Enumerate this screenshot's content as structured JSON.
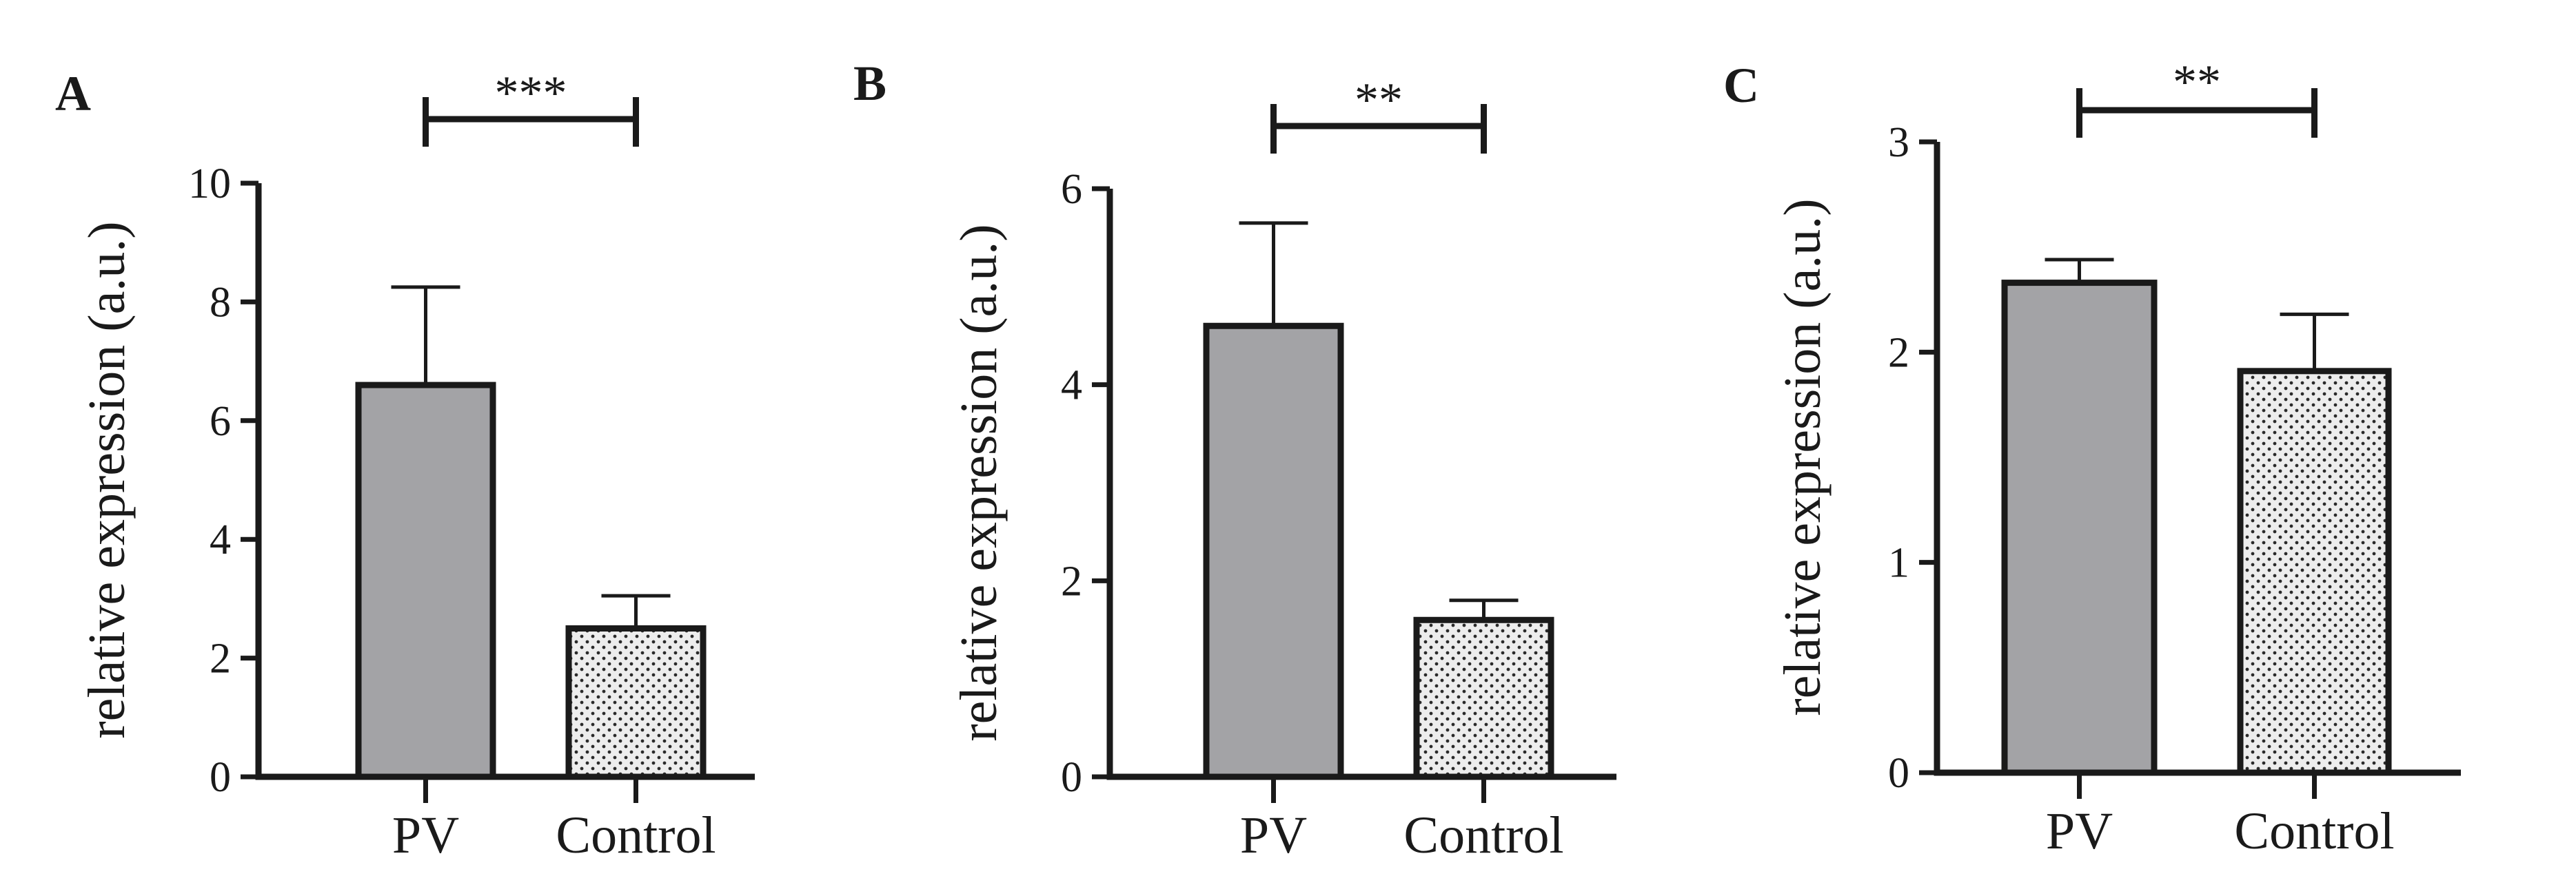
{
  "figure": {
    "panel_labels": [
      "A",
      "B",
      "C"
    ]
  },
  "colors": {
    "axis": "#1a1a1a",
    "pv_fill": "#a3a3a6",
    "control_fill": "#ededed",
    "control_dots": "#2a2a2a"
  },
  "chart_data": [
    {
      "type": "bar",
      "panel": "A",
      "categories": [
        "PV",
        "Control"
      ],
      "values": [
        6.6,
        2.5
      ],
      "errors": [
        1.65,
        0.55
      ],
      "ylabel": "relative expression (a.u.)",
      "ylim": [
        0,
        10
      ],
      "yticks": [
        0,
        2,
        4,
        6,
        8,
        10
      ],
      "significance": "***",
      "grid": false
    },
    {
      "type": "bar",
      "panel": "B",
      "categories": [
        "PV",
        "Control"
      ],
      "values": [
        4.6,
        1.6
      ],
      "errors": [
        1.05,
        0.2
      ],
      "ylabel": "relative expression (a.u.)",
      "ylim": [
        0,
        6
      ],
      "yticks": [
        0,
        2,
        4,
        6
      ],
      "significance": "**",
      "grid": false
    },
    {
      "type": "bar",
      "panel": "C",
      "categories": [
        "PV",
        "Control"
      ],
      "values": [
        2.33,
        1.91
      ],
      "errors": [
        0.11,
        0.27
      ],
      "ylabel": "relative expression (a.u.)",
      "ylim": [
        0,
        3
      ],
      "yticks": [
        0,
        1,
        2,
        3
      ],
      "significance": "**",
      "grid": false
    }
  ]
}
